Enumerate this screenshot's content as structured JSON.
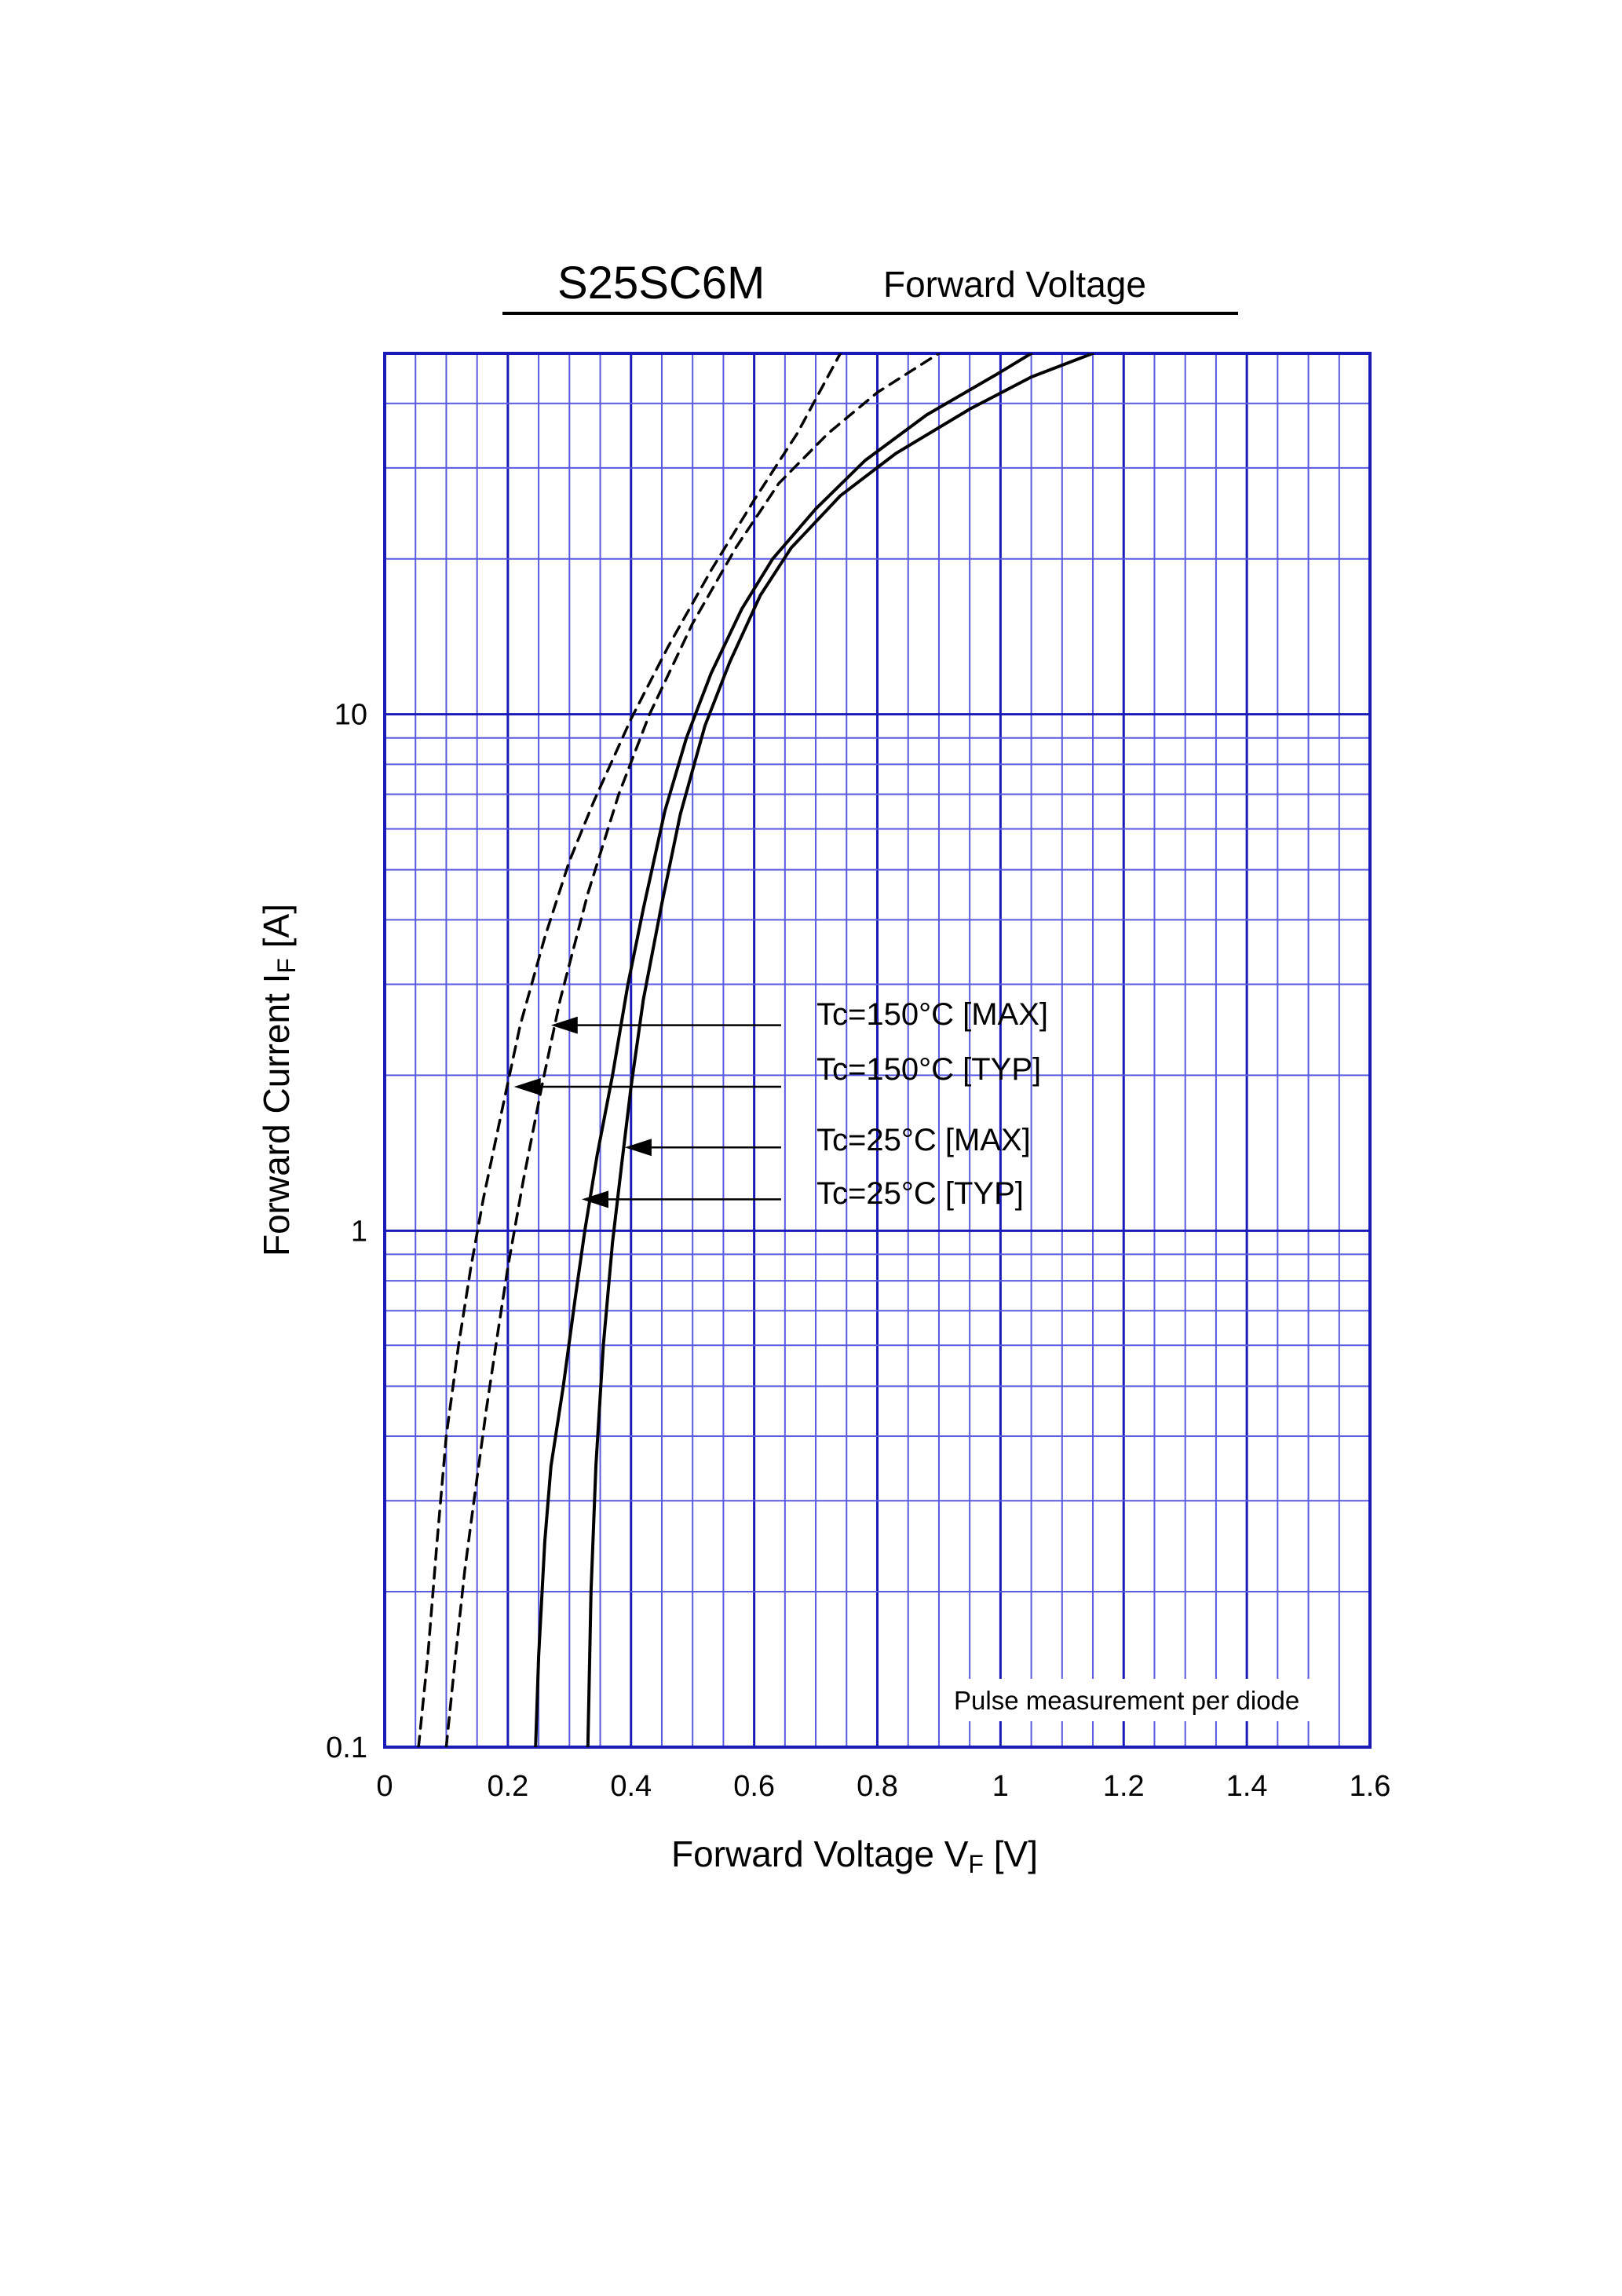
{
  "chart_data": {
    "type": "line",
    "title": "S25SC6M",
    "subtitle": "Forward Voltage",
    "xlabel": {
      "main": "Forward Voltage  V",
      "sub": "F",
      "unit": "  [V]"
    },
    "ylabel": {
      "main": "Forward Current  I",
      "sub": "F",
      "unit": "  [A]"
    },
    "xlim": [
      0,
      1.6
    ],
    "ylim": [
      0.1,
      50
    ],
    "y_scale": "log",
    "grid": true,
    "x_ticks": [
      0,
      0.2,
      0.4,
      0.6,
      0.8,
      1.0,
      1.2,
      1.4,
      1.6
    ],
    "x_tick_labels": [
      "0",
      "0.2",
      "0.4",
      "0.6",
      "0.8",
      "1",
      "1.2",
      "1.4",
      "1.6"
    ],
    "y_ticks": [
      0.1,
      1,
      10
    ],
    "y_tick_labels": [
      "0.1",
      "1",
      "10"
    ],
    "note": "Pulse measurement per diode",
    "series": [
      {
        "name": "Tc=150°C [MAX]",
        "style": "dashed",
        "label_anchor": {
          "x": 0.27,
          "y": 2.5
        },
        "points": [
          [
            0.1,
            0.1
          ],
          [
            0.115,
            0.15
          ],
          [
            0.13,
            0.22
          ],
          [
            0.145,
            0.3
          ],
          [
            0.165,
            0.45
          ],
          [
            0.185,
            0.65
          ],
          [
            0.2,
            0.85
          ],
          [
            0.225,
            1.25
          ],
          [
            0.255,
            1.9
          ],
          [
            0.285,
            2.8
          ],
          [
            0.33,
            4.5
          ],
          [
            0.38,
            7.0
          ],
          [
            0.43,
            10.0
          ],
          [
            0.5,
            15.0
          ],
          [
            0.57,
            21.0
          ],
          [
            0.64,
            28.0
          ],
          [
            0.72,
            35.0
          ],
          [
            0.8,
            42.0
          ],
          [
            0.9,
            50.0
          ]
        ]
      },
      {
        "name": "Tc=150°C [TYP]",
        "style": "dashed",
        "label_anchor": {
          "x": 0.21,
          "y": 1.9
        },
        "points": [
          [
            0.055,
            0.1
          ],
          [
            0.07,
            0.15
          ],
          [
            0.085,
            0.25
          ],
          [
            0.1,
            0.4
          ],
          [
            0.12,
            0.6
          ],
          [
            0.14,
            0.85
          ],
          [
            0.16,
            1.15
          ],
          [
            0.19,
            1.7
          ],
          [
            0.22,
            2.5
          ],
          [
            0.26,
            3.7
          ],
          [
            0.3,
            5.2
          ],
          [
            0.34,
            6.8
          ],
          [
            0.4,
            9.8
          ],
          [
            0.46,
            13.5
          ],
          [
            0.53,
            19.0
          ],
          [
            0.6,
            26.0
          ],
          [
            0.67,
            35.0
          ],
          [
            0.74,
            50.0
          ]
        ]
      },
      {
        "name": "Tc=25°C [MAX]",
        "style": "solid",
        "label_anchor": {
          "x": 0.39,
          "y": 1.45
        },
        "points": [
          [
            0.33,
            0.1
          ],
          [
            0.335,
            0.2
          ],
          [
            0.343,
            0.35
          ],
          [
            0.355,
            0.6
          ],
          [
            0.37,
            0.95
          ],
          [
            0.385,
            1.35
          ],
          [
            0.4,
            1.9
          ],
          [
            0.42,
            2.8
          ],
          [
            0.45,
            4.3
          ],
          [
            0.48,
            6.4
          ],
          [
            0.52,
            9.5
          ],
          [
            0.56,
            12.6
          ],
          [
            0.61,
            17.0
          ],
          [
            0.66,
            21.0
          ],
          [
            0.74,
            26.5
          ],
          [
            0.83,
            32.0
          ],
          [
            0.95,
            39.0
          ],
          [
            1.05,
            45.0
          ],
          [
            1.15,
            50.0
          ]
        ]
      },
      {
        "name": "Tc=25°C [TYP]",
        "style": "solid",
        "label_anchor": {
          "x": 0.32,
          "y": 1.15
        },
        "points": [
          [
            0.245,
            0.1
          ],
          [
            0.25,
            0.15
          ],
          [
            0.26,
            0.25
          ],
          [
            0.27,
            0.35
          ],
          [
            0.29,
            0.5
          ],
          [
            0.31,
            0.75
          ],
          [
            0.325,
            1.0
          ],
          [
            0.345,
            1.4
          ],
          [
            0.37,
            2.0
          ],
          [
            0.395,
            3.0
          ],
          [
            0.42,
            4.2
          ],
          [
            0.455,
            6.5
          ],
          [
            0.49,
            9.0
          ],
          [
            0.53,
            12.0
          ],
          [
            0.58,
            16.0
          ],
          [
            0.63,
            20.0
          ],
          [
            0.7,
            25.0
          ],
          [
            0.78,
            31.0
          ],
          [
            0.88,
            38.0
          ],
          [
            1.0,
            46.0
          ],
          [
            1.05,
            50.0
          ]
        ]
      }
    ]
  }
}
